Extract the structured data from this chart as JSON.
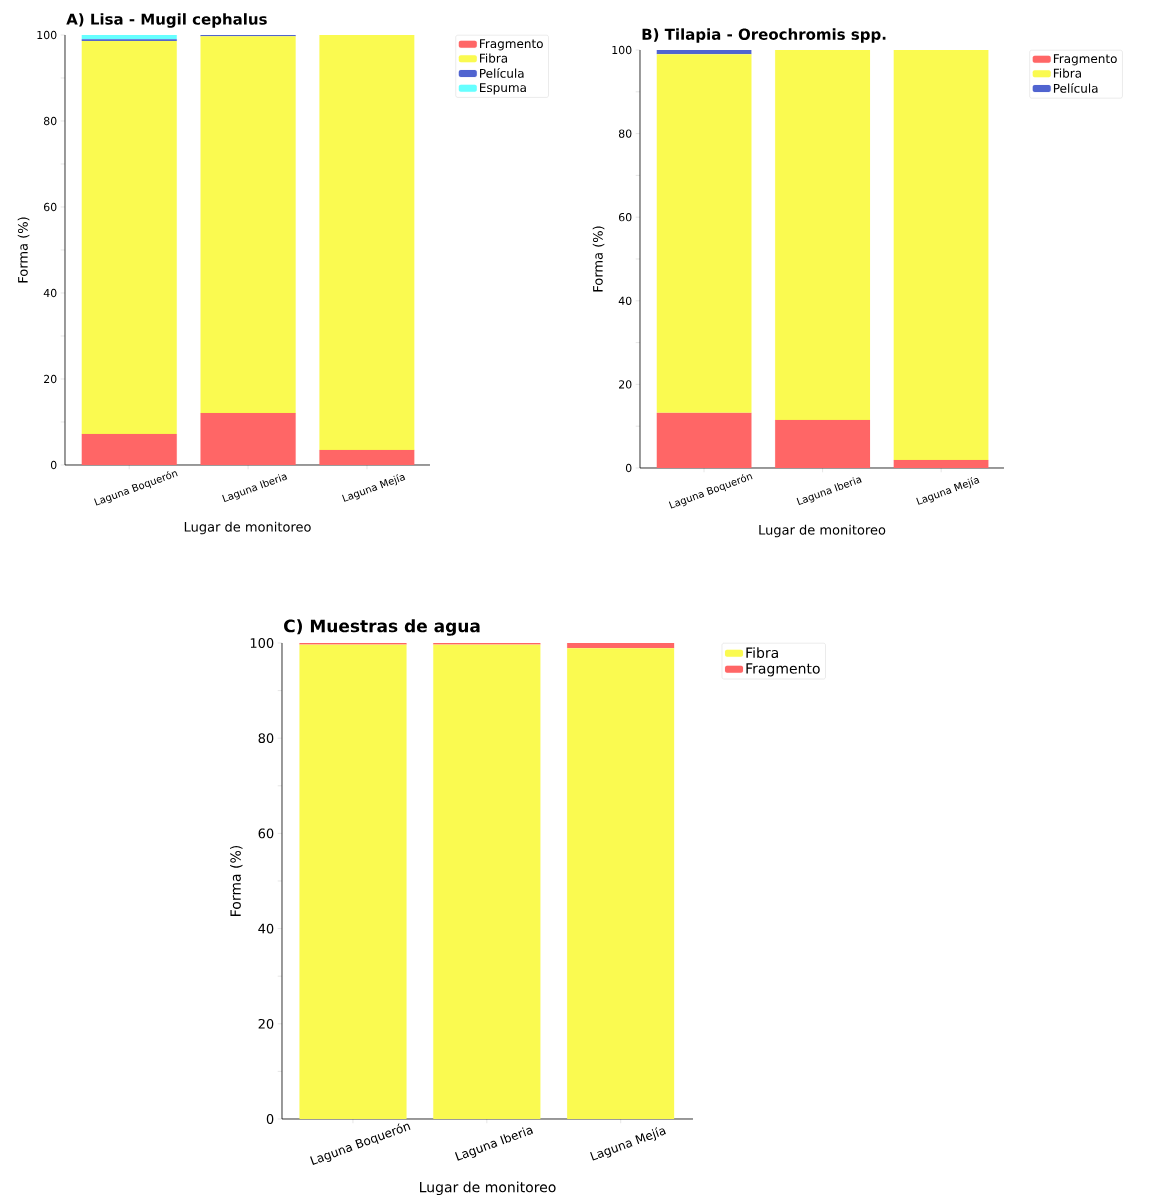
{
  "chart_data": [
    {
      "type": "bar",
      "title": "A) Lisa - Mugil cephalus",
      "xlabel": "Lugar de monitoreo",
      "ylabel": "Forma (%)",
      "categories": [
        "Laguna Boquerón",
        "Laguna Iberia",
        "Laguna Mejía"
      ],
      "stacked": true,
      "legend": "right",
      "ylim": [
        0,
        100
      ],
      "yticks": [
        0,
        {
          "value": 10,
          "label": null
        },
        20,
        {
          "value": 30,
          "label": null
        },
        40,
        {
          "value": 50,
          "label": null
        },
        60,
        {
          "value": 70,
          "label": null
        },
        80,
        {
          "value": 90,
          "label": null
        },
        100
      ],
      "series": [
        {
          "name": "Fragmento",
          "color": "#ff6666",
          "values": [
            7.2,
            12.1,
            3.5
          ]
        },
        {
          "name": "Fibra",
          "color": "#fafa50",
          "values": [
            91.4,
            87.6,
            96.5
          ]
        },
        {
          "name": "Película",
          "color": "#5064d0",
          "values": [
            0.4,
            0.3,
            0
          ]
        },
        {
          "name": "Espuma",
          "color": "#66ffff",
          "values": [
            1.0,
            0,
            0
          ]
        }
      ]
    },
    {
      "type": "bar",
      "title": "B) Tilapia - Oreochromis spp.",
      "xlabel": "Lugar de monitoreo",
      "ylabel": "Forma (%)",
      "categories": [
        "Laguna Boquerón",
        "Laguna Iberia",
        "Laguna Mejía"
      ],
      "stacked": true,
      "legend": "right",
      "ylim": [
        0,
        100
      ],
      "yticks": [
        0,
        {
          "value": 10,
          "label": null
        },
        20,
        {
          "value": 30,
          "label": null
        },
        40,
        {
          "value": 50,
          "label": null
        },
        60,
        {
          "value": 70,
          "label": null
        },
        80,
        {
          "value": 90,
          "label": null
        },
        100
      ],
      "series": [
        {
          "name": "Fragmento",
          "color": "#ff6666",
          "values": [
            13.2,
            11.5,
            1.9
          ]
        },
        {
          "name": "Fibra",
          "color": "#fafa50",
          "values": [
            85.8,
            88.5,
            98.1
          ]
        },
        {
          "name": "Película",
          "color": "#5064d0",
          "values": [
            1.0,
            0,
            0
          ]
        }
      ]
    },
    {
      "type": "bar",
      "title": "C) Muestras de agua",
      "xlabel": "Lugar de monitoreo",
      "ylabel": "Forma (%)",
      "categories": [
        "Laguna Boquerón",
        "Laguna Iberia",
        "Laguna Mejía"
      ],
      "stacked": true,
      "legend": "right",
      "ylim": [
        0,
        100
      ],
      "yticks": [
        0,
        {
          "value": 10,
          "label": null
        },
        20,
        {
          "value": 30,
          "label": null
        },
        40,
        {
          "value": 50,
          "label": null
        },
        60,
        {
          "value": 70,
          "label": null
        },
        80,
        {
          "value": 90,
          "label": null
        },
        100
      ],
      "series": [
        {
          "name": "Fibra",
          "color": "#fafa50",
          "values": [
            99.7,
            99.7,
            98.9
          ]
        },
        {
          "name": "Fragmento",
          "color": "#ff6666",
          "values": [
            0.3,
            0.3,
            1.1
          ]
        }
      ]
    }
  ]
}
